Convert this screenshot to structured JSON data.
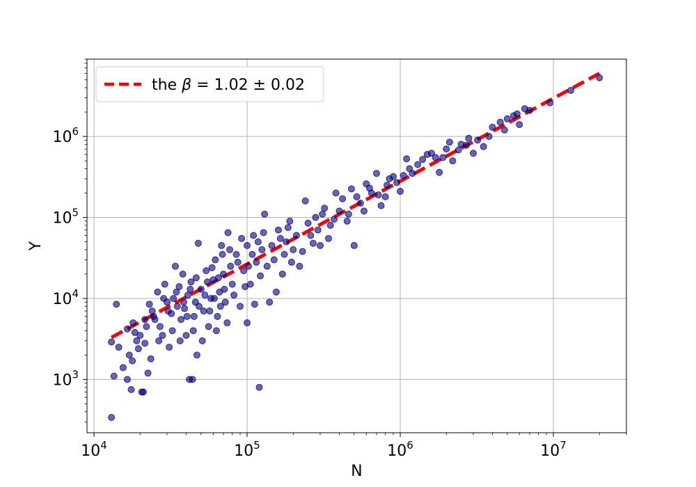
{
  "chart_data": {
    "type": "scatter",
    "xlabel": "N",
    "ylabel": "Y",
    "xscale": "log",
    "yscale": "log",
    "xlim": [
      9000,
      30000000
    ],
    "ylim": [
      220,
      9000000
    ],
    "grid": true,
    "legend_placement": "top-left",
    "x_ticks": [
      {
        "value": 10000,
        "base": "10",
        "exp": "4"
      },
      {
        "value": 100000,
        "base": "10",
        "exp": "5"
      },
      {
        "value": 1000000,
        "base": "10",
        "exp": "6"
      },
      {
        "value": 10000000,
        "base": "10",
        "exp": "7"
      }
    ],
    "y_ticks": [
      {
        "value": 1000,
        "base": "10",
        "exp": "3"
      },
      {
        "value": 10000,
        "base": "10",
        "exp": "4"
      },
      {
        "value": 100000,
        "base": "10",
        "exp": "5"
      },
      {
        "value": 1000000,
        "base": "10",
        "exp": "6"
      }
    ],
    "series": [
      {
        "type": "scatter",
        "color": "#000080",
        "points": [
          [
            13000,
            340
          ],
          [
            13500,
            1100
          ],
          [
            14000,
            8500
          ],
          [
            13000,
            2900
          ],
          [
            14500,
            2500
          ],
          [
            15500,
            1400
          ],
          [
            16500,
            1000
          ],
          [
            17500,
            750
          ],
          [
            20500,
            700
          ],
          [
            21000,
            700
          ],
          [
            22500,
            1200
          ],
          [
            17000,
            2000
          ],
          [
            17800,
            1700
          ],
          [
            18500,
            3800
          ],
          [
            19000,
            3000
          ],
          [
            20000,
            3500
          ],
          [
            21500,
            5500
          ],
          [
            22000,
            4500
          ],
          [
            23000,
            8500
          ],
          [
            24000,
            7000
          ],
          [
            25000,
            5500
          ],
          [
            26000,
            12000
          ],
          [
            27000,
            4500
          ],
          [
            28000,
            3500
          ],
          [
            29000,
            15000
          ],
          [
            30000,
            9000
          ],
          [
            31000,
            2500
          ],
          [
            32000,
            6500
          ],
          [
            33000,
            10000
          ],
          [
            34000,
            25000
          ],
          [
            35000,
            8000
          ],
          [
            36000,
            14000
          ],
          [
            37000,
            5500
          ],
          [
            38000,
            20000
          ],
          [
            39000,
            7500
          ],
          [
            40000,
            3500
          ],
          [
            41000,
            11000
          ],
          [
            42000,
            1000
          ],
          [
            44000,
            1000
          ],
          [
            43000,
            16000
          ],
          [
            45000,
            6000
          ],
          [
            46000,
            9000
          ],
          [
            47000,
            2000
          ],
          [
            48000,
            48000
          ],
          [
            50000,
            13000
          ],
          [
            52000,
            7000
          ],
          [
            54000,
            22000
          ],
          [
            56000,
            4500
          ],
          [
            58000,
            10000
          ],
          [
            60000,
            17000
          ],
          [
            62000,
            30000
          ],
          [
            64000,
            6000
          ],
          [
            66000,
            12000
          ],
          [
            68000,
            45000
          ],
          [
            70000,
            20000
          ],
          [
            72000,
            9000
          ],
          [
            75000,
            65000
          ],
          [
            78000,
            25000
          ],
          [
            80000,
            15000
          ],
          [
            85000,
            35000
          ],
          [
            90000,
            8000
          ],
          [
            95000,
            22000
          ],
          [
            100000,
            5000
          ],
          [
            100000,
            45000
          ],
          [
            105000,
            15000
          ],
          [
            110000,
            60000
          ],
          [
            115000,
            28000
          ],
          [
            120000,
            800
          ],
          [
            125000,
            40000
          ],
          [
            130000,
            110000
          ],
          [
            140000,
            9000
          ],
          [
            150000,
            30000
          ],
          [
            160000,
            70000
          ],
          [
            170000,
            20000
          ],
          [
            180000,
            50000
          ],
          [
            190000,
            90000
          ],
          [
            200000,
            40000
          ],
          [
            220000,
            25000
          ],
          [
            240000,
            160000
          ],
          [
            260000,
            60000
          ],
          [
            280000,
            100000
          ],
          [
            300000,
            45000
          ],
          [
            320000,
            130000
          ],
          [
            350000,
            80000
          ],
          [
            380000,
            200000
          ],
          [
            400000,
            120000
          ],
          [
            450000,
            90000
          ],
          [
            480000,
            225000
          ],
          [
            500000,
            45000
          ],
          [
            550000,
            150000
          ],
          [
            600000,
            260000
          ],
          [
            650000,
            200000
          ],
          [
            700000,
            350000
          ],
          [
            750000,
            140000
          ],
          [
            800000,
            180000
          ],
          [
            850000,
            300000
          ],
          [
            900000,
            320000
          ],
          [
            1000000,
            210000
          ],
          [
            1100000,
            530000
          ],
          [
            1200000,
            350000
          ],
          [
            1300000,
            450000
          ],
          [
            1500000,
            600000
          ],
          [
            1700000,
            550000
          ],
          [
            1800000,
            360000
          ],
          [
            2000000,
            700000
          ],
          [
            2200000,
            500000
          ],
          [
            2500000,
            800000
          ],
          [
            2800000,
            950000
          ],
          [
            3000000,
            620000
          ],
          [
            3500000,
            750000
          ],
          [
            4000000,
            1300000
          ],
          [
            4500000,
            1500000
          ],
          [
            5000000,
            1650000
          ],
          [
            5500000,
            1800000
          ],
          [
            6000000,
            1400000
          ],
          [
            6500000,
            2200000
          ],
          [
            7000000,
            2100000
          ],
          [
            9500000,
            2600000
          ],
          [
            13000000,
            3700000
          ],
          [
            20000000,
            5300000
          ],
          [
            16500,
            4200
          ],
          [
            18000,
            5000
          ],
          [
            19500,
            2400
          ],
          [
            21500,
            2800
          ],
          [
            23500,
            1800
          ],
          [
            24500,
            6000
          ],
          [
            26500,
            3000
          ],
          [
            28500,
            10000
          ],
          [
            30500,
            7000
          ],
          [
            32500,
            4000
          ],
          [
            34500,
            12000
          ],
          [
            36500,
            3000
          ],
          [
            38500,
            9000
          ],
          [
            40500,
            6000
          ],
          [
            42500,
            13000
          ],
          [
            44500,
            4000
          ],
          [
            46500,
            18000
          ],
          [
            48500,
            8000
          ],
          [
            51000,
            3000
          ],
          [
            53000,
            11000
          ],
          [
            55000,
            16000
          ],
          [
            57000,
            7000
          ],
          [
            59000,
            24000
          ],
          [
            61000,
            10000
          ],
          [
            63000,
            4000
          ],
          [
            65000,
            18000
          ],
          [
            67000,
            8000
          ],
          [
            69000,
            35000
          ],
          [
            71000,
            13000
          ],
          [
            74000,
            5000
          ],
          [
            77000,
            40000
          ],
          [
            82000,
            11000
          ],
          [
            87000,
            28000
          ],
          [
            92000,
            55000
          ],
          [
            97000,
            14000
          ],
          [
            102000,
            25000
          ],
          [
            108000,
            35000
          ],
          [
            112000,
            8500
          ],
          [
            118000,
            50000
          ],
          [
            122000,
            19000
          ],
          [
            128000,
            65000
          ],
          [
            135000,
            25000
          ],
          [
            145000,
            45000
          ],
          [
            155000,
            12000
          ],
          [
            165000,
            55000
          ],
          [
            175000,
            35000
          ],
          [
            185000,
            75000
          ],
          [
            195000,
            28000
          ],
          [
            210000,
            60000
          ],
          [
            230000,
            38000
          ],
          [
            250000,
            85000
          ],
          [
            270000,
            48000
          ],
          [
            290000,
            70000
          ],
          [
            310000,
            110000
          ],
          [
            340000,
            55000
          ],
          [
            370000,
            95000
          ],
          [
            420000,
            170000
          ],
          [
            460000,
            110000
          ],
          [
            520000,
            180000
          ],
          [
            580000,
            120000
          ],
          [
            630000,
            230000
          ],
          [
            720000,
            190000
          ],
          [
            820000,
            250000
          ],
          [
            950000,
            270000
          ],
          [
            1050000,
            330000
          ],
          [
            1150000,
            400000
          ],
          [
            1400000,
            520000
          ],
          [
            1600000,
            620000
          ],
          [
            1900000,
            550000
          ],
          [
            2100000,
            850000
          ],
          [
            2400000,
            680000
          ],
          [
            2700000,
            780000
          ],
          [
            3200000,
            900000
          ],
          [
            3800000,
            1000000
          ],
          [
            4800000,
            1200000
          ],
          [
            5800000,
            1900000
          ]
        ]
      }
    ],
    "fit_line": {
      "color": "#ff0000",
      "x": [
        13000,
        20000000
      ],
      "y": [
        3300,
        6000000
      ]
    },
    "legend": {
      "prefix": "the ",
      "symbol": "β",
      "suffix": " = 1.02 ± 0.02"
    }
  }
}
